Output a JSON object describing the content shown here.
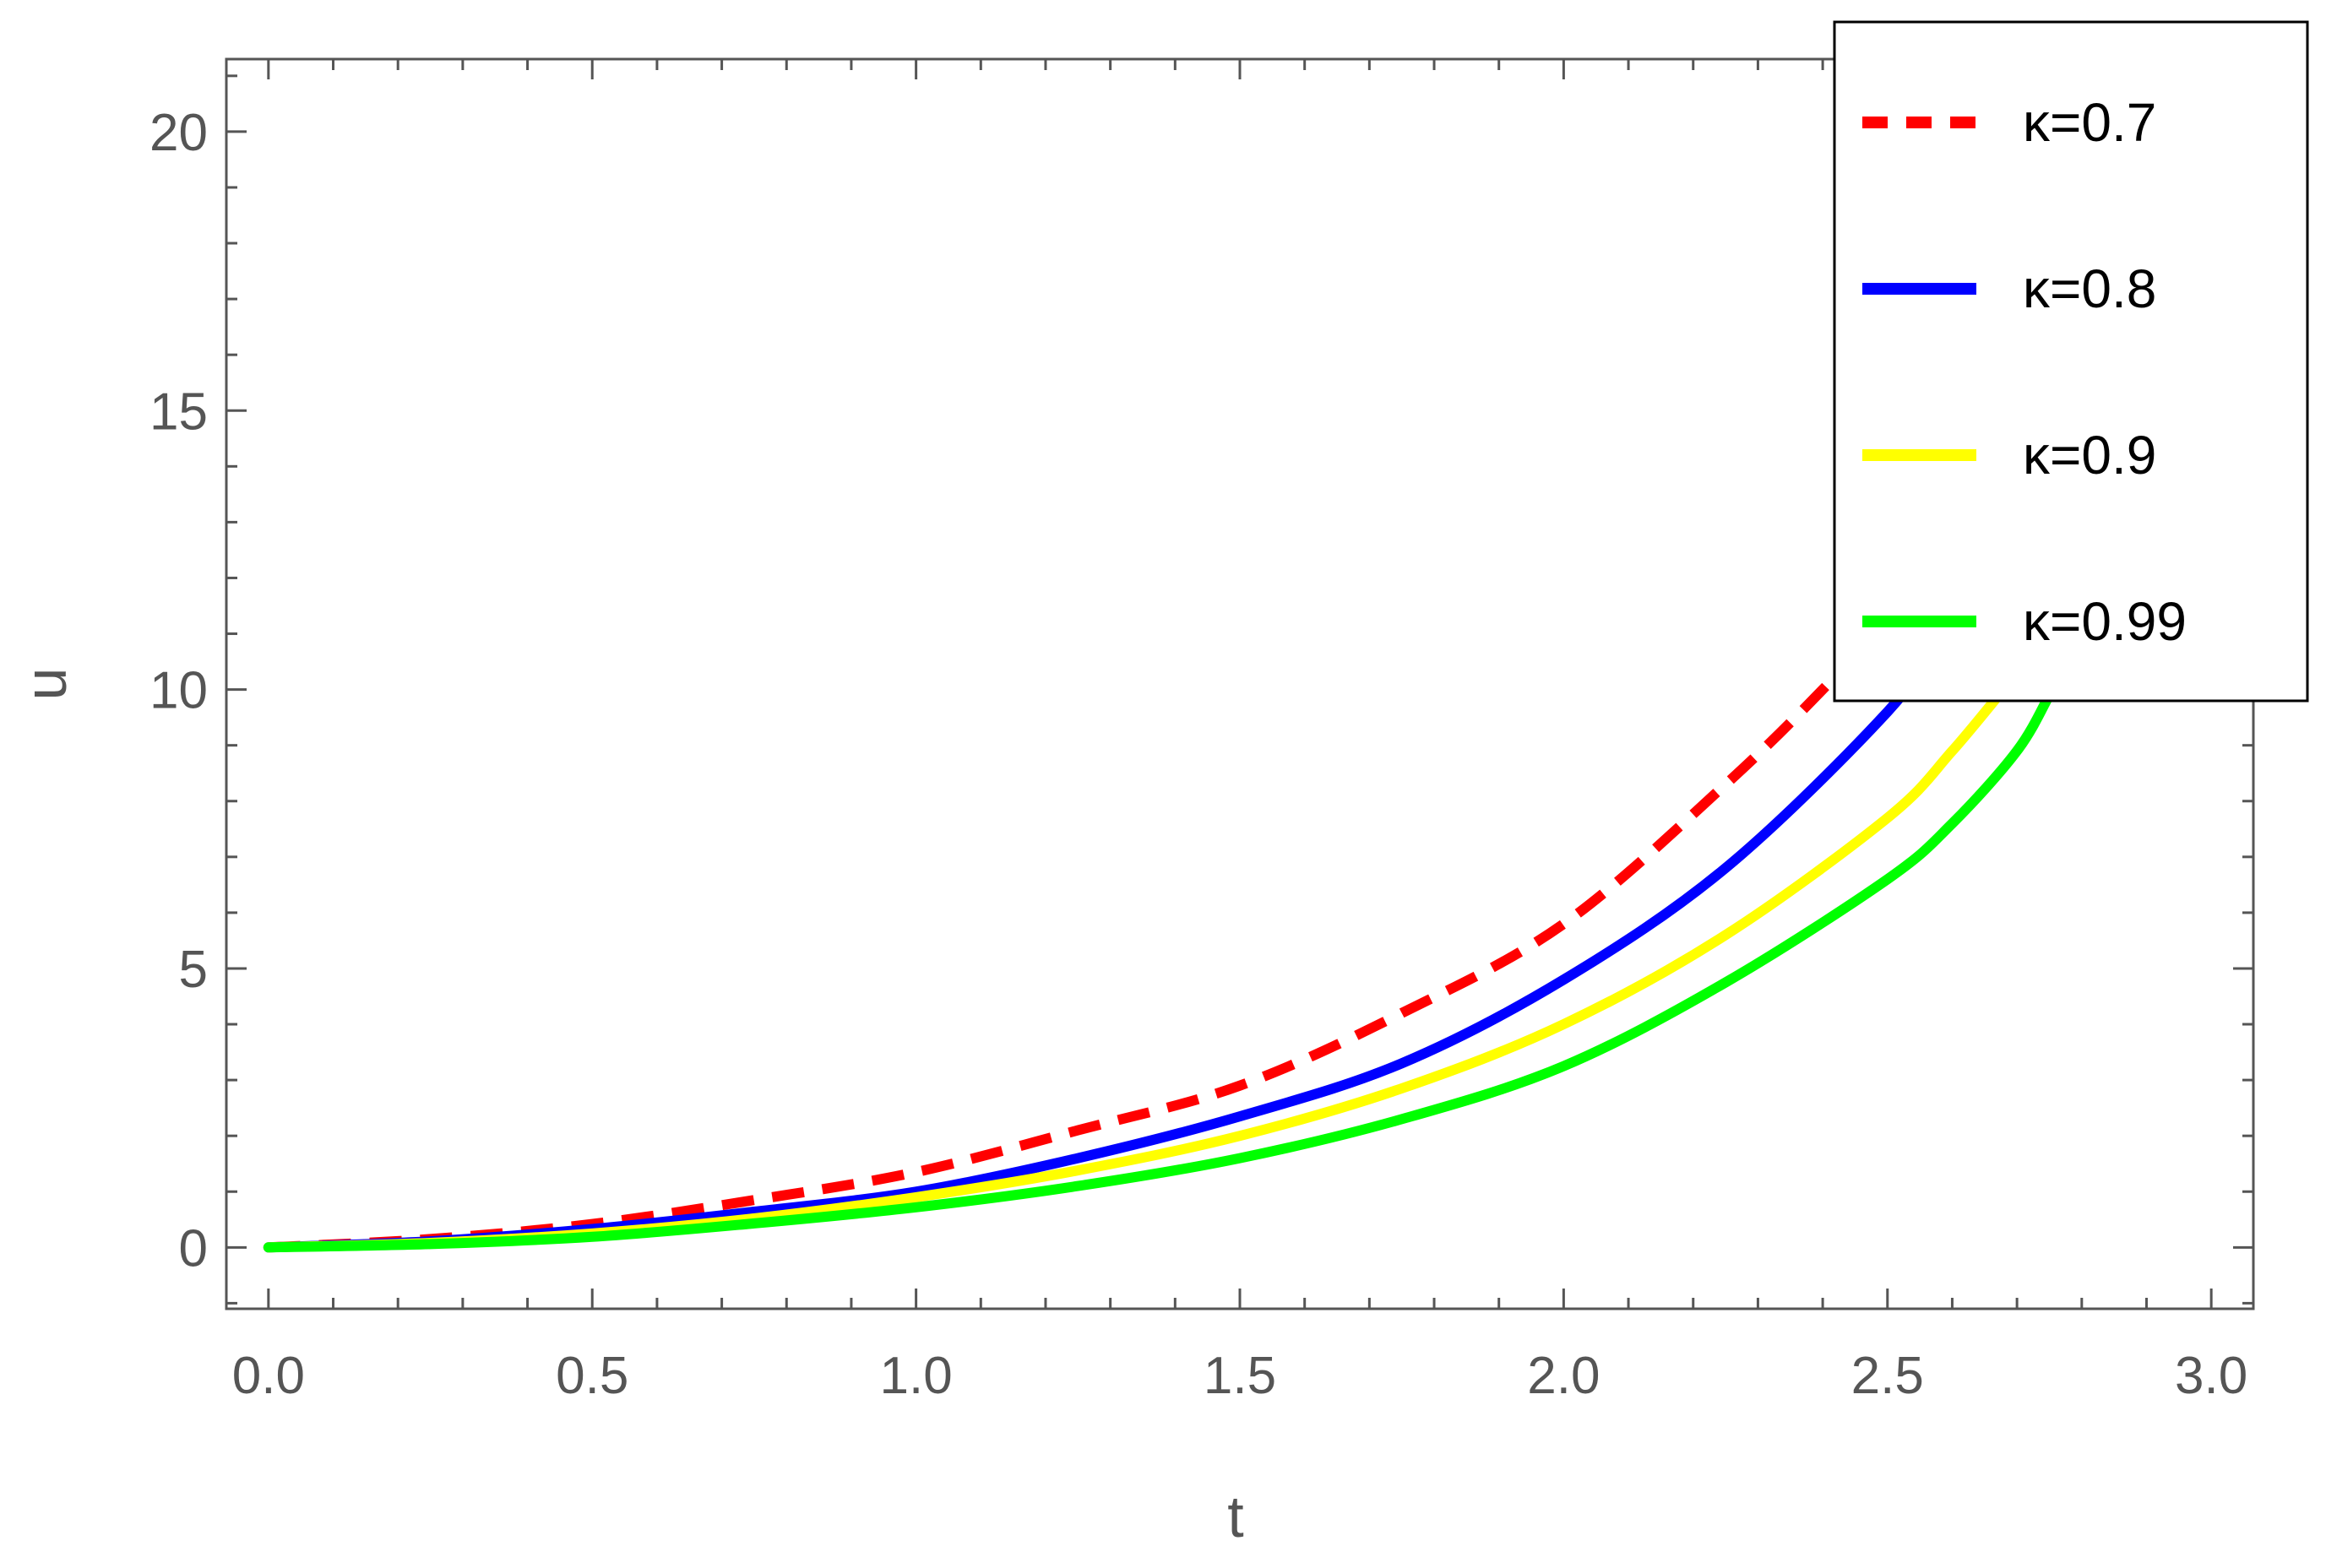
{
  "chart_data": {
    "type": "line",
    "xlabel": "t",
    "ylabel": "u",
    "xlim": [
      -0.065,
      3.065
    ],
    "ylim": [
      -1.1,
      21.3
    ],
    "xticks": [
      "0.0",
      "0.5",
      "1.0",
      "1.5",
      "2.0",
      "2.5",
      "3.0"
    ],
    "yticks": [
      "0",
      "5",
      "10",
      "15",
      "20"
    ],
    "grid": false,
    "legend_position": "top-right",
    "series": [
      {
        "name": "κ=0.7",
        "color": "#ff0000",
        "dash": "dashed",
        "x": [
          0.0,
          0.25,
          0.5,
          0.75,
          1.0,
          1.25,
          1.5,
          1.75,
          2.0,
          2.25,
          2.4,
          2.5,
          2.6
        ],
        "y": [
          0.0,
          0.15,
          0.42,
          0.85,
          1.35,
          2.1,
          2.9,
          4.2,
          5.8,
          8.3,
          10.0,
          11.3,
          12.6
        ]
      },
      {
        "name": "κ=0.8",
        "color": "#0000ff",
        "dash": "solid",
        "x": [
          0.0,
          0.25,
          0.5,
          0.75,
          1.0,
          1.25,
          1.5,
          1.75,
          2.0,
          2.25,
          2.5,
          2.6
        ],
        "y": [
          0.0,
          0.11,
          0.33,
          0.64,
          1.0,
          1.6,
          2.35,
          3.3,
          4.8,
          6.8,
          9.6,
          11.2
        ]
      },
      {
        "name": "κ=0.9",
        "color": "#ffff00",
        "dash": "solid",
        "x": [
          0.0,
          0.25,
          0.5,
          0.75,
          1.0,
          1.25,
          1.5,
          1.75,
          2.0,
          2.25,
          2.5,
          2.6,
          2.7
        ],
        "y": [
          0.0,
          0.08,
          0.25,
          0.52,
          0.9,
          1.38,
          2.0,
          2.85,
          4.0,
          5.6,
          7.7,
          8.9,
          10.3
        ]
      },
      {
        "name": "κ=0.99",
        "color": "#00ff00",
        "dash": "solid",
        "x": [
          0.0,
          0.25,
          0.5,
          0.75,
          1.0,
          1.25,
          1.5,
          1.75,
          2.0,
          2.25,
          2.5,
          2.6,
          2.7,
          2.75
        ],
        "y": [
          0.0,
          0.06,
          0.19,
          0.43,
          0.72,
          1.1,
          1.6,
          2.3,
          3.25,
          4.75,
          6.6,
          7.6,
          8.9,
          9.9
        ]
      }
    ]
  }
}
